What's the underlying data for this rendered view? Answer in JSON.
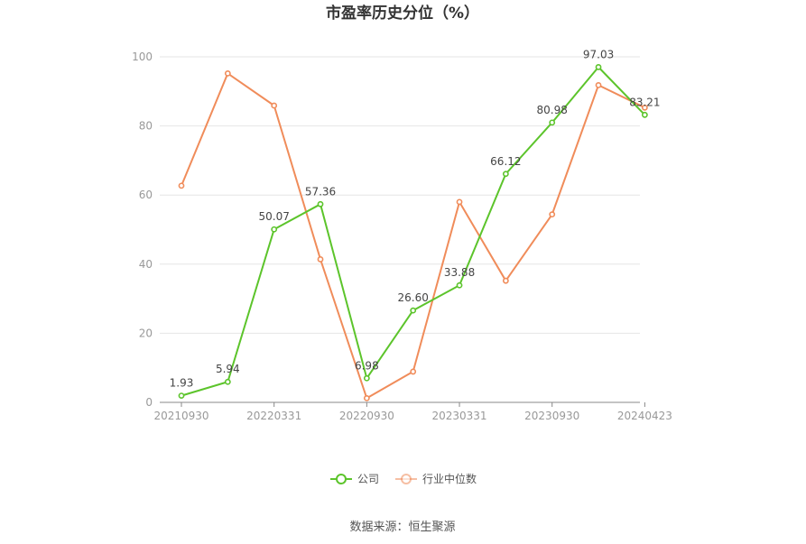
{
  "chart_data": {
    "type": "line",
    "title": "市盈率历史分位（%）",
    "xlabel": "",
    "ylabel": "",
    "ylim": [
      0,
      100
    ],
    "yticks": [
      0,
      20,
      40,
      60,
      80,
      100
    ],
    "categories": [
      "20210930",
      "",
      "20220331",
      "",
      "20220930",
      "",
      "20230331",
      "",
      "20230930",
      "",
      "20240423"
    ],
    "x_tick_labels": [
      "20210930",
      "20220331",
      "20220930",
      "20230331",
      "20230930",
      "20240423"
    ],
    "series": [
      {
        "name": "公司",
        "color": "#5cc42b",
        "values": [
          1.93,
          5.94,
          50.07,
          57.36,
          6.98,
          26.6,
          33.88,
          66.12,
          80.98,
          97.03,
          83.21
        ],
        "labels": [
          "1.93",
          "5.94",
          "50.07",
          "57.36",
          "6.98",
          "26.60",
          "33.88",
          "66.12",
          "80.98",
          "97.03",
          "83.21"
        ]
      },
      {
        "name": "行业中位数",
        "color": "#f08c5a",
        "values": [
          62.7,
          95.2,
          85.9,
          41.4,
          1.2,
          8.9,
          58.0,
          35.2,
          54.4,
          91.8,
          85.3
        ]
      }
    ],
    "grid": true,
    "legend": "bottom-center"
  },
  "source_text": "数据来源：恒生聚源"
}
